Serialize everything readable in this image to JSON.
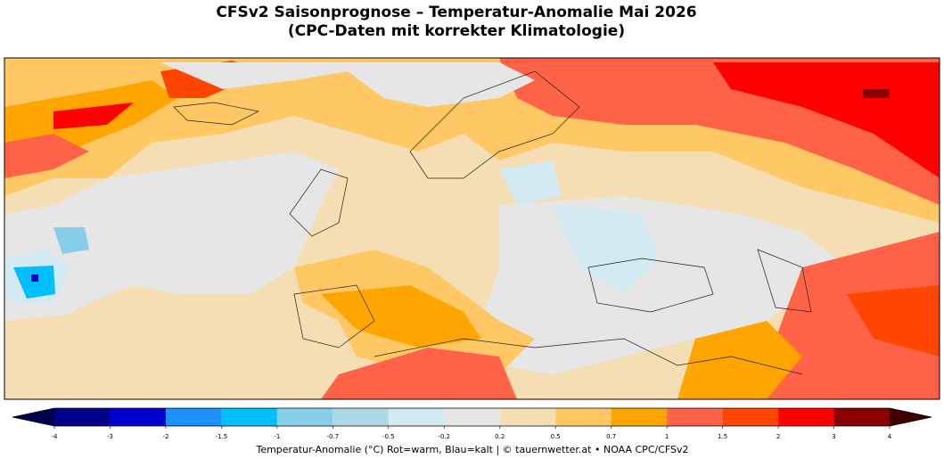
{
  "header": {
    "title": "CFSv2 Saisonprognose – Temperatur-Anomalie Mai 2026",
    "subtitle": "(CPC-Daten mit korrekter Klimatologie)"
  },
  "colorbar": {
    "ticks": [
      -4,
      -3,
      -2,
      -1.5,
      -1,
      -0.7,
      -0.5,
      -0.2,
      0.2,
      0.5,
      0.7,
      1,
      1.5,
      2,
      3,
      4
    ],
    "colors": [
      "#00008b",
      "#0000cd",
      "#1e90ff",
      "#00bfff",
      "#87ceeb",
      "#add8e6",
      "#d4eaf2",
      "#e6e6e6",
      "#f5deb3",
      "#ffc864",
      "#ffa500",
      "#ff6347",
      "#ff4500",
      "#ff0000",
      "#8b0000"
    ],
    "under_color": "#000050",
    "over_color": "#400000",
    "label": "Temperatur-Anomalie (°C)  Rot=warm, Blau=kalt    |    © tauernwetter.at  •  NOAA CPC/CFSv2"
  }
}
